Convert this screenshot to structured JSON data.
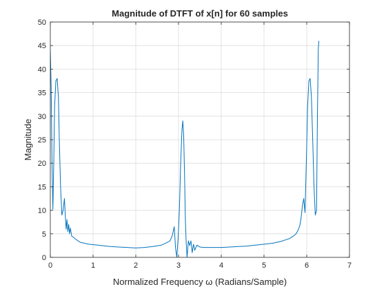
{
  "chart_data": {
    "type": "line",
    "title": "Magnitude of DTFT of x[n] for 60 samples",
    "xlabel": "Normalized Frequency ω (Radians/Sample)",
    "ylabel": "Magnitude",
    "xlim": [
      0,
      7
    ],
    "ylim": [
      0,
      50
    ],
    "xticks": [
      "0",
      "1",
      "2",
      "3",
      "4",
      "5",
      "6",
      "7"
    ],
    "yticks": [
      "0",
      "5",
      "10",
      "15",
      "20",
      "25",
      "30",
      "35",
      "40",
      "45",
      "50"
    ],
    "grid": true,
    "legend": "none",
    "series": [
      {
        "color": "#0072bd",
        "x": [
          0.0,
          0.02,
          0.04,
          0.06,
          0.08,
          0.1,
          0.13,
          0.16,
          0.19,
          0.21,
          0.24,
          0.27,
          0.3,
          0.33,
          0.35,
          0.37,
          0.39,
          0.41,
          0.43,
          0.45,
          0.47,
          0.5,
          0.55,
          0.6,
          0.65,
          0.7,
          0.8,
          0.9,
          1.0,
          1.2,
          1.4,
          1.6,
          1.8,
          2.0,
          2.2,
          2.4,
          2.6,
          2.7,
          2.8,
          2.85,
          2.9,
          2.93,
          2.96,
          2.99,
          3.02,
          3.05,
          3.08,
          3.1,
          3.12,
          3.14,
          3.16,
          3.18,
          3.2,
          3.23,
          3.26,
          3.29,
          3.32,
          3.35,
          3.38,
          3.43,
          3.5,
          3.6,
          3.8,
          4.0,
          4.2,
          4.4,
          4.6,
          4.8,
          5.0,
          5.2,
          5.4,
          5.5,
          5.6,
          5.65,
          5.7,
          5.75,
          5.8,
          5.84,
          5.87,
          5.9,
          5.93,
          5.96,
          5.99,
          6.02,
          6.05,
          6.08,
          6.11,
          6.14,
          6.17,
          6.2,
          6.23,
          6.25,
          6.27,
          6.283
        ],
        "y": [
          44,
          36,
          20,
          10.2,
          20,
          32,
          37.5,
          38,
          34,
          25,
          15,
          9,
          10,
          12.5,
          9,
          6,
          8,
          5.5,
          7,
          5,
          6.2,
          4.5,
          4.2,
          3.8,
          3.5,
          3.2,
          3,
          2.8,
          2.7,
          2.5,
          2.3,
          2.2,
          2.1,
          2.0,
          2.1,
          2.3,
          2.6,
          3,
          3.5,
          4.5,
          6.5,
          2,
          0,
          4,
          10,
          20,
          27,
          29,
          26,
          18,
          8,
          3,
          0,
          3.5,
          2.5,
          3.5,
          1,
          2.8,
          1.5,
          2.6,
          2.2,
          2.1,
          2.1,
          2.1,
          2.2,
          2.3,
          2.4,
          2.6,
          2.8,
          3.0,
          3.4,
          3.7,
          4.0,
          4.3,
          4.6,
          5.0,
          5.8,
          6.8,
          8.5,
          11,
          12.5,
          9.5,
          20,
          32,
          37.5,
          38,
          34,
          25,
          15,
          9,
          10,
          30,
          44,
          46
        ]
      }
    ]
  }
}
